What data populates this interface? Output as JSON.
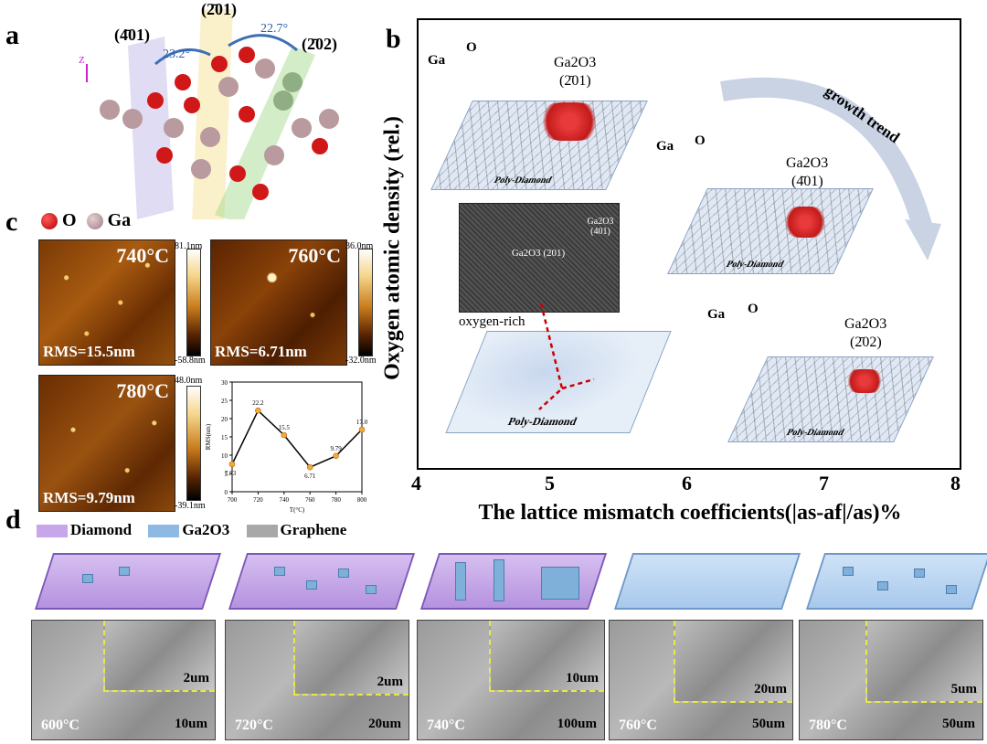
{
  "panel_labels": {
    "a": "a",
    "b": "b",
    "c": "c",
    "d": "d"
  },
  "panel_a": {
    "planes": [
      "(4̄01)",
      "(2̄01)",
      "(2̄02)"
    ],
    "angles": [
      "23.2°",
      "22.7°"
    ],
    "axis_label": "Z",
    "legend": {
      "o": "O",
      "ga": "Ga"
    }
  },
  "panel_b": {
    "ylabel": "Oxygen atomic density (rel.)",
    "xlabel": "The lattice mismatch coefficients(|as-af|/as)%",
    "xticks": [
      "4",
      "5",
      "6",
      "7",
      "8"
    ],
    "growth_trend": "growth trend",
    "ga": "Ga",
    "o": "O",
    "ga2o3": "Ga2O3",
    "plane_201": "(2̄01)",
    "plane_401": "(4̄01)",
    "plane_202": "(2̄02)",
    "substrate": "Poly-Diamond",
    "oxygen_rich": "oxygen-rich",
    "tem_left": "Ga2O3 (201)",
    "tem_right": "Ga2O3 (401)"
  },
  "panel_c": {
    "images": [
      {
        "temp": "740°C",
        "rms": "RMS=15.5nm",
        "cb_max": "81.1nm",
        "cb_min": "-58.8nm"
      },
      {
        "temp": "760°C",
        "rms": "RMS=6.71nm",
        "cb_max": "36.0nm",
        "cb_min": "-32.0nm"
      },
      {
        "temp": "780°C",
        "rms": "RMS=9.79nm",
        "cb_max": "48.0nm",
        "cb_min": "-39.1nm"
      }
    ]
  },
  "chart_data": {
    "type": "line",
    "x": [
      700,
      720,
      740,
      760,
      780,
      800
    ],
    "series": [
      {
        "values": [
          7.53,
          22.2,
          15.5,
          6.71,
          9.79,
          17.0
        ]
      }
    ],
    "point_labels": [
      "7.53",
      "22.2",
      "15.5",
      "6.71",
      "9.79",
      "17.0"
    ],
    "xlabel": "T(°C)",
    "ylabel": "RMS(nm)",
    "xticks": [
      "700",
      "720",
      "740",
      "760",
      "780",
      "800"
    ],
    "yticks": [
      "0",
      "5",
      "10",
      "15",
      "20",
      "25",
      "30"
    ],
    "xlim": [
      700,
      800
    ],
    "ylim": [
      0,
      30
    ],
    "colors": {
      "line": "#000000",
      "marker": "#f4a93a"
    }
  },
  "panel_d": {
    "legend": {
      "diamond": "Diamond",
      "ga2o3": "Ga2O3",
      "graphene": "Graphene"
    },
    "colors": {
      "diamond": "#c7a7ea",
      "ga2o3": "#8db9e2",
      "graphene": "#a8a8a8"
    },
    "sems": [
      {
        "temp": "600°C",
        "inset_scale": "2um",
        "main_scale": "10um"
      },
      {
        "temp": "720°C",
        "inset_scale": "2um",
        "main_scale": "20um"
      },
      {
        "temp": "740°C",
        "inset_scale": "10um",
        "main_scale": "100um"
      },
      {
        "temp": "760°C",
        "inset_scale": "20um",
        "main_scale": "50um"
      },
      {
        "temp": "780°C",
        "inset_scale": "5um",
        "main_scale": "50um"
      }
    ]
  }
}
